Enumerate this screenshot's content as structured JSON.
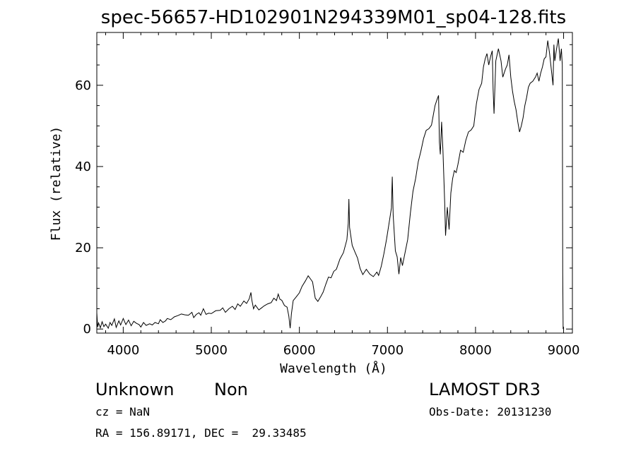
{
  "chart_data": {
    "type": "line",
    "title": "spec-56657-HD102901N294339M01_sp04-128.fits",
    "xlabel": "Wavelength (Å)",
    "ylabel": "Flux (relative)",
    "xlim": [
      3700,
      9100
    ],
    "ylim": [
      -1,
      73
    ],
    "x_ticks": [
      4000,
      5000,
      6000,
      7000,
      8000,
      9000
    ],
    "y_ticks": [
      0,
      20,
      40,
      60
    ],
    "grid": false,
    "series": [
      {
        "color": "#000000",
        "points": [
          [
            3700,
            4
          ],
          [
            3710,
            0.5
          ],
          [
            3720,
            1.5
          ],
          [
            3740,
            0.3
          ],
          [
            3760,
            1.8
          ],
          [
            3780,
            0.6
          ],
          [
            3800,
            1.2
          ],
          [
            3830,
            0.2
          ],
          [
            3850,
            1.6
          ],
          [
            3870,
            0.9
          ],
          [
            3900,
            2.5
          ],
          [
            3920,
            0.4
          ],
          [
            3950,
            2.0
          ],
          [
            3970,
            1.0
          ],
          [
            4000,
            2.6
          ],
          [
            4030,
            1.1
          ],
          [
            4060,
            2.2
          ],
          [
            4090,
            0.8
          ],
          [
            4120,
            1.9
          ],
          [
            4150,
            1.4
          ],
          [
            4180,
            1.1
          ],
          [
            4200,
            0.5
          ],
          [
            4230,
            1.6
          ],
          [
            4260,
            0.9
          ],
          [
            4300,
            1.3
          ],
          [
            4330,
            1.0
          ],
          [
            4360,
            1.6
          ],
          [
            4400,
            1.3
          ],
          [
            4420,
            2.3
          ],
          [
            4450,
            1.6
          ],
          [
            4480,
            2.0
          ],
          [
            4500,
            2.6
          ],
          [
            4540,
            2.3
          ],
          [
            4580,
            3.0
          ],
          [
            4620,
            3.3
          ],
          [
            4660,
            3.7
          ],
          [
            4700,
            3.5
          ],
          [
            4740,
            3.4
          ],
          [
            4780,
            4.1
          ],
          [
            4800,
            2.8
          ],
          [
            4830,
            3.6
          ],
          [
            4860,
            4.0
          ],
          [
            4880,
            3.4
          ],
          [
            4910,
            5.0
          ],
          [
            4940,
            3.6
          ],
          [
            4970,
            3.9
          ],
          [
            5000,
            3.8
          ],
          [
            5050,
            4.5
          ],
          [
            5100,
            4.6
          ],
          [
            5130,
            5.2
          ],
          [
            5160,
            4.1
          ],
          [
            5200,
            5.0
          ],
          [
            5240,
            5.6
          ],
          [
            5270,
            4.8
          ],
          [
            5300,
            6.2
          ],
          [
            5330,
            5.6
          ],
          [
            5370,
            6.9
          ],
          [
            5400,
            6.3
          ],
          [
            5430,
            7.4
          ],
          [
            5450,
            9.0
          ],
          [
            5460,
            7.2
          ],
          [
            5480,
            5.0
          ],
          [
            5500,
            5.9
          ],
          [
            5540,
            4.7
          ],
          [
            5570,
            5.2
          ],
          [
            5600,
            5.7
          ],
          [
            5640,
            6.2
          ],
          [
            5680,
            6.5
          ],
          [
            5710,
            7.6
          ],
          [
            5740,
            7.0
          ],
          [
            5760,
            8.6
          ],
          [
            5780,
            7.3
          ],
          [
            5800,
            7.1
          ],
          [
            5830,
            5.8
          ],
          [
            5860,
            5.4
          ],
          [
            5880,
            3.2
          ],
          [
            5895,
            0.2
          ],
          [
            5910,
            3.8
          ],
          [
            5930,
            7.0
          ],
          [
            5960,
            7.8
          ],
          [
            6000,
            8.9
          ],
          [
            6030,
            10.5
          ],
          [
            6070,
            11.9
          ],
          [
            6100,
            13.1
          ],
          [
            6130,
            12.2
          ],
          [
            6150,
            11.6
          ],
          [
            6180,
            7.6
          ],
          [
            6210,
            6.8
          ],
          [
            6240,
            7.9
          ],
          [
            6270,
            9.1
          ],
          [
            6300,
            11.0
          ],
          [
            6330,
            12.8
          ],
          [
            6360,
            12.6
          ],
          [
            6390,
            14.2
          ],
          [
            6420,
            14.7
          ],
          [
            6460,
            17.2
          ],
          [
            6500,
            18.8
          ],
          [
            6540,
            22.0
          ],
          [
            6555,
            26.0
          ],
          [
            6562,
            32.0
          ],
          [
            6570,
            25.0
          ],
          [
            6600,
            20.6
          ],
          [
            6630,
            19.0
          ],
          [
            6660,
            17.5
          ],
          [
            6690,
            14.9
          ],
          [
            6720,
            13.4
          ],
          [
            6760,
            14.7
          ],
          [
            6800,
            13.5
          ],
          [
            6840,
            12.9
          ],
          [
            6880,
            14.0
          ],
          [
            6900,
            13.2
          ],
          [
            6930,
            15.5
          ],
          [
            6960,
            18.6
          ],
          [
            6990,
            22.1
          ],
          [
            7020,
            26.3
          ],
          [
            7045,
            29.8
          ],
          [
            7055,
            37.5
          ],
          [
            7065,
            28.0
          ],
          [
            7090,
            19.2
          ],
          [
            7110,
            17.8
          ],
          [
            7130,
            13.5
          ],
          [
            7150,
            17.6
          ],
          [
            7170,
            15.6
          ],
          [
            7200,
            18.8
          ],
          [
            7230,
            22.0
          ],
          [
            7260,
            28.5
          ],
          [
            7290,
            33.9
          ],
          [
            7320,
            37.1
          ],
          [
            7350,
            41.2
          ],
          [
            7380,
            43.8
          ],
          [
            7410,
            46.9
          ],
          [
            7440,
            48.9
          ],
          [
            7470,
            49.3
          ],
          [
            7500,
            50.2
          ],
          [
            7520,
            52.6
          ],
          [
            7540,
            55.0
          ],
          [
            7560,
            56.3
          ],
          [
            7580,
            57.5
          ],
          [
            7590,
            46.0
          ],
          [
            7600,
            43.0
          ],
          [
            7615,
            51.0
          ],
          [
            7630,
            44.0
          ],
          [
            7650,
            31.0
          ],
          [
            7660,
            23.0
          ],
          [
            7680,
            30.0
          ],
          [
            7700,
            24.5
          ],
          [
            7720,
            33.5
          ],
          [
            7740,
            37.0
          ],
          [
            7760,
            39.0
          ],
          [
            7780,
            38.5
          ],
          [
            7800,
            40.5
          ],
          [
            7830,
            44.0
          ],
          [
            7860,
            43.5
          ],
          [
            7890,
            46.5
          ],
          [
            7920,
            48.5
          ],
          [
            7950,
            49.0
          ],
          [
            7980,
            50.0
          ],
          [
            8010,
            55.5
          ],
          [
            8040,
            59.0
          ],
          [
            8070,
            60.5
          ],
          [
            8090,
            64.5
          ],
          [
            8110,
            66.5
          ],
          [
            8130,
            67.8
          ],
          [
            8150,
            65.0
          ],
          [
            8170,
            67.0
          ],
          [
            8190,
            68.5
          ],
          [
            8200,
            59.0
          ],
          [
            8210,
            53.0
          ],
          [
            8230,
            66.0
          ],
          [
            8260,
            69.0
          ],
          [
            8290,
            66.0
          ],
          [
            8310,
            62.0
          ],
          [
            8340,
            64.0
          ],
          [
            8360,
            65.0
          ],
          [
            8380,
            67.5
          ],
          [
            8400,
            62.0
          ],
          [
            8420,
            58.5
          ],
          [
            8440,
            56.0
          ],
          [
            8460,
            54.0
          ],
          [
            8480,
            51.0
          ],
          [
            8500,
            48.5
          ],
          [
            8520,
            50.0
          ],
          [
            8540,
            52.0
          ],
          [
            8560,
            55.0
          ],
          [
            8580,
            57.0
          ],
          [
            8600,
            59.5
          ],
          [
            8620,
            60.5
          ],
          [
            8650,
            61.0
          ],
          [
            8680,
            62.0
          ],
          [
            8700,
            63.0
          ],
          [
            8720,
            61.0
          ],
          [
            8740,
            63.0
          ],
          [
            8760,
            64.5
          ],
          [
            8780,
            66.5
          ],
          [
            8800,
            67.0
          ],
          [
            8820,
            71.0
          ],
          [
            8840,
            68.0
          ],
          [
            8860,
            64.0
          ],
          [
            8880,
            60.0
          ],
          [
            8890,
            70.0
          ],
          [
            8900,
            66.0
          ],
          [
            8920,
            69.0
          ],
          [
            8940,
            71.5
          ],
          [
            8960,
            66.0
          ],
          [
            8975,
            69.0
          ],
          [
            8985,
            65.0
          ],
          [
            8990,
            14.0
          ],
          [
            8995,
            0.0
          ]
        ]
      }
    ]
  },
  "footer": {
    "object_class": "Unknown",
    "object_subclass": "Non",
    "cz_label": "cz = NaN",
    "radec_label": "RA = 156.89171, DEC =  29.33485",
    "survey": "LAMOST DR3",
    "obs_date_label": "Obs-Date: 20131230"
  }
}
